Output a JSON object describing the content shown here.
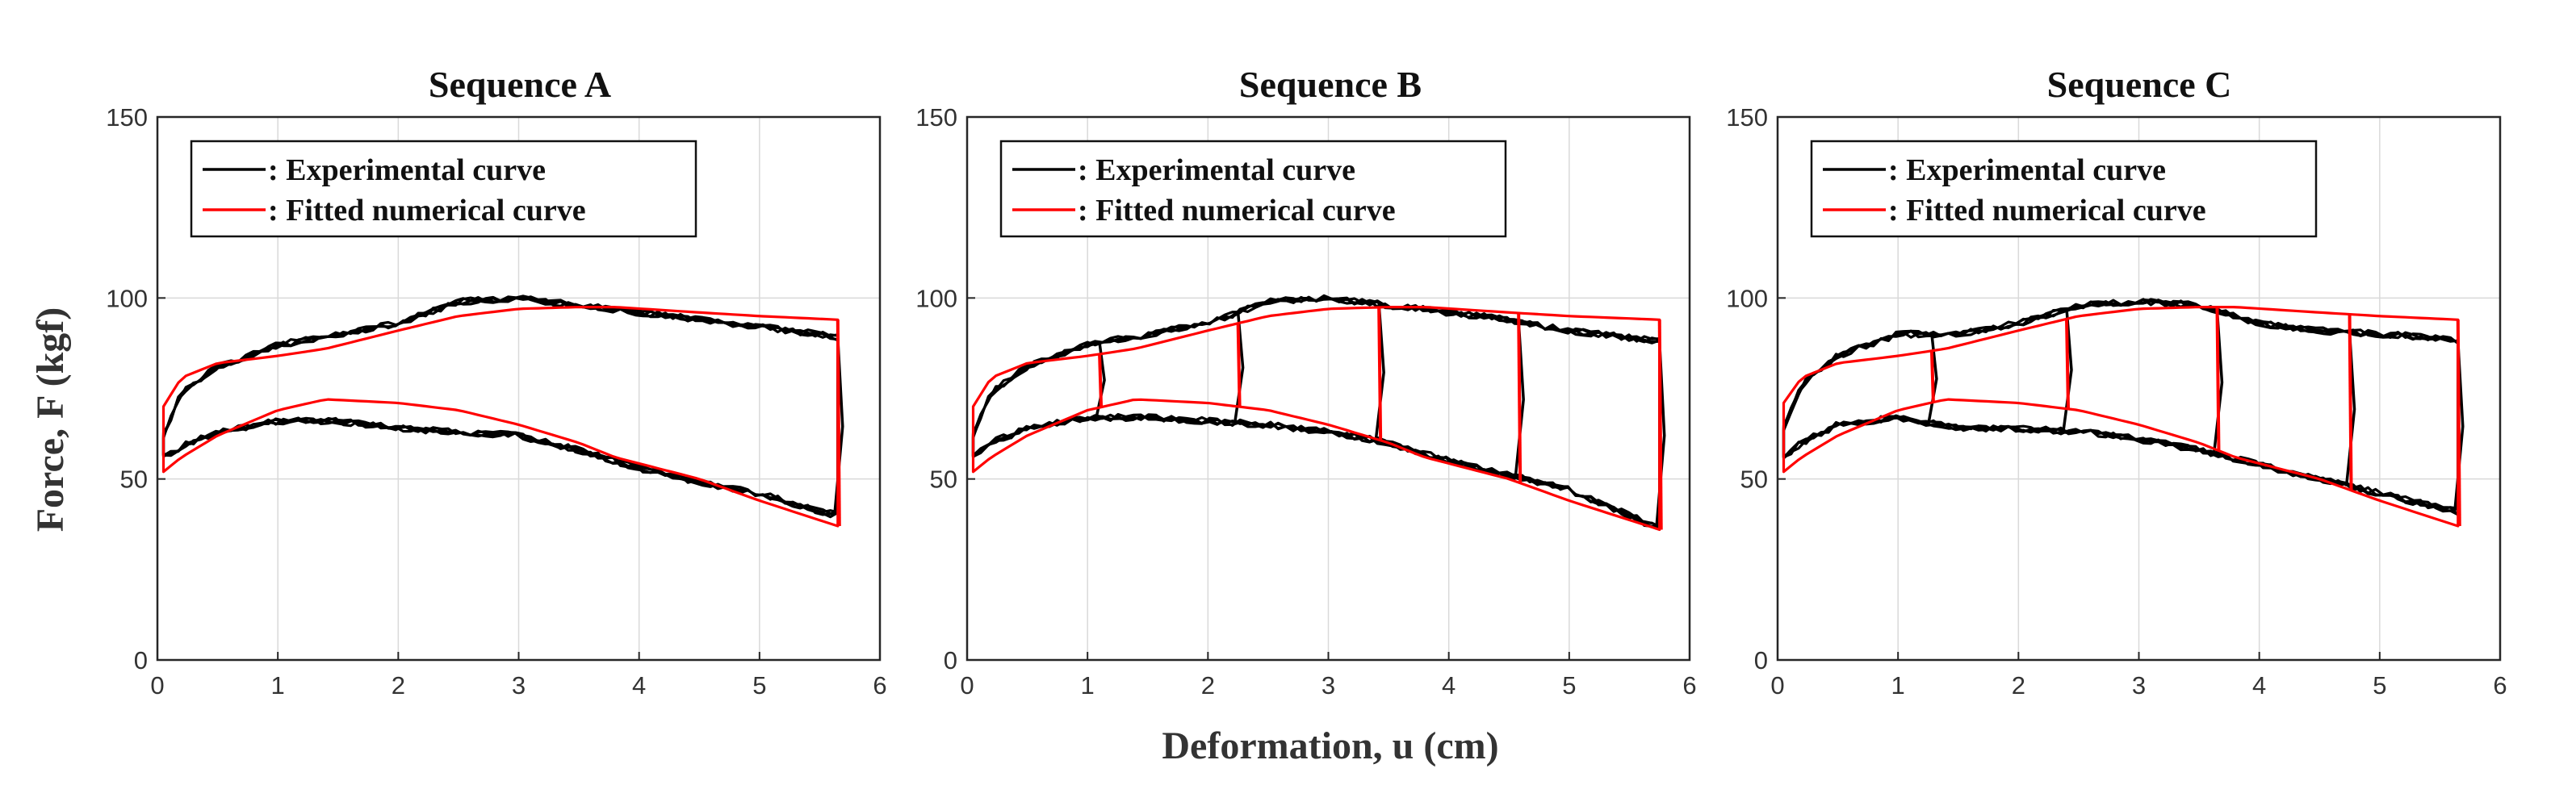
{
  "figure": {
    "xlabel": "Deformation, u (cm)",
    "ylabel": "Force, F (kgf)"
  },
  "legend": {
    "experimental": ": Experimental curve",
    "fitted": ": Fitted numerical curve"
  },
  "colors": {
    "experimental": "#000000",
    "fitted": "#ff0000",
    "grid": "#d9d9d9",
    "axis": "#262626"
  },
  "chart_data": [
    {
      "type": "line",
      "title": "Sequence A",
      "xlabel": "Deformation, u (cm)",
      "ylabel": "Force, F (kgf)",
      "xlim": [
        0,
        6
      ],
      "ylim": [
        0,
        150
      ],
      "xticks": [
        0,
        1,
        2,
        3,
        4,
        5,
        6
      ],
      "yticks": [
        0,
        50,
        100,
        150
      ],
      "grid": true,
      "legend_position": "top-left",
      "unload_points": [
        5.65
      ],
      "series": [
        {
          "name": "Experimental curve",
          "x": [
            0.05,
            0.2,
            0.5,
            1.0,
            1.5,
            2.0,
            2.5,
            3.0,
            3.5,
            4.0,
            4.5,
            5.0,
            5.5,
            5.65
          ],
          "upper": [
            62,
            74,
            81,
            87,
            90,
            93,
            99,
            100,
            98,
            96,
            94,
            92,
            90,
            89
          ],
          "lower": [
            56,
            59,
            63,
            66,
            66,
            64,
            63,
            62,
            58,
            53,
            49,
            46,
            41,
            40
          ]
        },
        {
          "name": "Fitted numerical curve",
          "x": [
            0.05,
            0.2,
            0.5,
            1.0,
            1.4,
            2.0,
            2.5,
            3.0,
            3.5,
            3.8,
            4.5,
            5.0,
            5.65
          ],
          "upper": [
            70,
            78,
            82,
            84,
            86,
            91,
            95,
            97,
            97.5,
            97.5,
            96,
            95,
            94
          ],
          "lower": [
            52,
            56,
            62,
            69,
            72,
            71,
            69,
            65,
            60,
            56,
            50,
            44,
            37
          ]
        }
      ]
    },
    {
      "type": "line",
      "title": "Sequence B",
      "xlabel": "Deformation, u (cm)",
      "ylabel": "Force, F (kgf)",
      "xlim": [
        0,
        6
      ],
      "ylim": [
        0,
        150
      ],
      "xticks": [
        0,
        1,
        2,
        3,
        4,
        5,
        6
      ],
      "yticks": [
        0,
        50,
        100,
        150
      ],
      "grid": true,
      "legend_position": "top-left",
      "unload_points": [
        1.1,
        2.25,
        3.42,
        4.58,
        5.75
      ],
      "series": [
        {
          "name": "Experimental curve",
          "x": [
            0.05,
            0.2,
            0.5,
            1.0,
            1.5,
            2.0,
            2.5,
            3.0,
            3.5,
            4.0,
            4.5,
            5.0,
            5.5,
            5.75
          ],
          "upper": [
            62,
            74,
            81,
            87,
            90,
            93,
            99,
            100,
            98,
            96,
            94,
            91,
            89,
            88
          ],
          "lower": [
            56,
            60,
            64,
            67,
            67,
            66,
            65,
            63,
            60,
            55,
            51,
            47,
            40,
            36
          ]
        },
        {
          "name": "Fitted numerical curve",
          "x": [
            0.05,
            0.2,
            0.5,
            1.0,
            1.4,
            2.0,
            2.5,
            3.0,
            3.5,
            3.8,
            4.5,
            5.0,
            5.75
          ],
          "upper": [
            70,
            78,
            82,
            84,
            86,
            91,
            95,
            97,
            97.5,
            97.5,
            96,
            95,
            94
          ],
          "lower": [
            52,
            56,
            62,
            69,
            72,
            71,
            69,
            65,
            60,
            56,
            50,
            44,
            36
          ]
        }
      ]
    },
    {
      "type": "line",
      "title": "Sequence C",
      "xlabel": "Deformation, u (cm)",
      "ylabel": "Force, F (kgf)",
      "xlim": [
        0,
        6
      ],
      "ylim": [
        0,
        150
      ],
      "xticks": [
        0,
        1,
        2,
        3,
        4,
        5,
        6
      ],
      "yticks": [
        0,
        50,
        100,
        150
      ],
      "grid": true,
      "legend_position": "top-left",
      "unload_points": [
        1.28,
        2.4,
        3.65,
        4.75,
        5.65
      ],
      "series": [
        {
          "name": "Experimental curve",
          "x": [
            0.05,
            0.2,
            0.5,
            1.0,
            1.5,
            2.0,
            2.5,
            3.0,
            3.5,
            4.0,
            4.5,
            5.0,
            5.5,
            5.65
          ],
          "upper": [
            64,
            76,
            84,
            90,
            90,
            93,
            98,
            99,
            98,
            93,
            91,
            90,
            89,
            88
          ],
          "lower": [
            56,
            60,
            65,
            67,
            64,
            64,
            63,
            61,
            58,
            54,
            50,
            46,
            42,
            41
          ]
        },
        {
          "name": "Fitted numerical curve",
          "x": [
            0.05,
            0.2,
            0.5,
            1.0,
            1.4,
            2.0,
            2.5,
            3.0,
            3.5,
            3.8,
            4.5,
            5.0,
            5.65
          ],
          "upper": [
            71,
            78,
            82,
            84,
            86,
            91,
            95,
            97,
            97.5,
            97.5,
            96,
            95,
            94
          ],
          "lower": [
            52,
            56,
            62,
            69,
            72,
            71,
            69,
            65,
            60,
            56,
            50,
            44,
            37
          ]
        }
      ]
    }
  ]
}
